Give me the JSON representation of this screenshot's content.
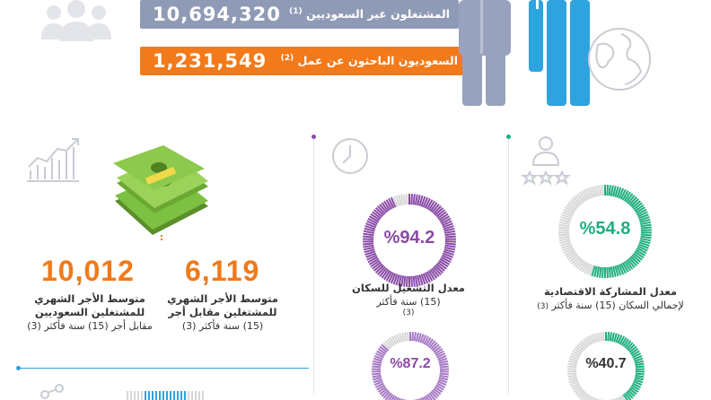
{
  "header": {
    "non_saudi_employed": {
      "label": "المشتغلون غير السعوديين",
      "note": "(1)",
      "value": "10,694,320"
    },
    "saudi_job_seekers": {
      "label": "السعوديون الباحثون عن عمل",
      "note": "(2)",
      "value": "1,231,549"
    },
    "colors": {
      "grey": "#8f9bb6",
      "orange": "#f27a1a",
      "blue": "#2ea3df"
    }
  },
  "wages": {
    "saudi_wage": {
      "value": "10,012",
      "line1": "متوسط الأجر الشهري",
      "line2": "للمشتغلين السعوديين",
      "line3": "مقابل أجر (15) سنة فأكثر",
      "note": "(3)"
    },
    "all_wage": {
      "value": "6,119",
      "line1": "متوسط الأجر الشهري",
      "line2": "للمشتغلين مقابل أجر",
      "line3": "(15) سنة فأكثر",
      "note": "(3)"
    }
  },
  "employment": {
    "rate": {
      "value": "%94.2",
      "fraction": 0.942,
      "line1": "معدل التشغيل للسكان",
      "line2": "(15) سنة فأكثر",
      "note": "(3)",
      "color": "#8a4aa6"
    },
    "second": {
      "value": "%87.2",
      "fraction": 0.872,
      "color": "#a678c4"
    }
  },
  "participation": {
    "rate": {
      "value": "%54.8",
      "fraction": 0.548,
      "line1": "معدل المشاركة الاقتصادية",
      "line2": "لإجمالي السكان (15) سنة فأكثر",
      "note": "(3)",
      "color": "#1fae7f"
    },
    "second": {
      "value": "%40.7",
      "fraction": 0.407,
      "color": "#1fae7f"
    }
  },
  "icons": [
    "people-group-icon",
    "globe-icon",
    "line-chart-icon",
    "money-stack-icon",
    "clock-icon",
    "user-rating-icon",
    "share-icon"
  ]
}
